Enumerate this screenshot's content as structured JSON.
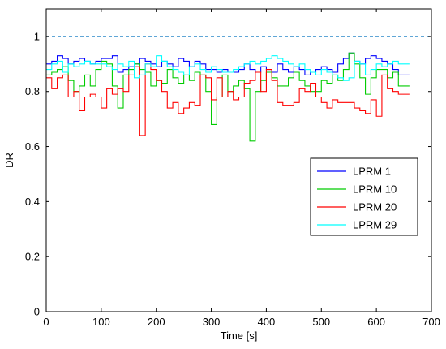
{
  "chart_data": {
    "type": "line",
    "title": "",
    "xlabel": "Time   [s]",
    "ylabel": "DR",
    "xlim": [
      0,
      700
    ],
    "ylim": [
      0,
      1.1
    ],
    "xticks": [
      0,
      100,
      200,
      300,
      400,
      500,
      600,
      700
    ],
    "yticks": [
      0,
      0.2,
      0.4,
      0.6,
      0.8,
      1
    ],
    "xtick_labels": [
      "0",
      "100",
      "200",
      "300",
      "400",
      "500",
      "600",
      "700"
    ],
    "ytick_labels": [
      "0",
      "0.2",
      "0.4",
      "0.6",
      "0.8",
      "1"
    ],
    "grid": false,
    "legend": "center-right",
    "step": true,
    "series": [
      {
        "name": "LPRM 1",
        "color": "#0000ff",
        "x": [
          0,
          10,
          20,
          30,
          40,
          50,
          60,
          70,
          80,
          90,
          100,
          110,
          120,
          130,
          140,
          150,
          160,
          170,
          180,
          190,
          200,
          210,
          220,
          230,
          240,
          250,
          260,
          270,
          280,
          290,
          300,
          310,
          320,
          330,
          340,
          350,
          360,
          370,
          380,
          390,
          400,
          410,
          420,
          430,
          440,
          450,
          460,
          470,
          480,
          490,
          500,
          510,
          520,
          530,
          540,
          550,
          560,
          570,
          580,
          590,
          600,
          610,
          620,
          630,
          640,
          650
        ],
        "y": [
          0.9,
          0.91,
          0.93,
          0.92,
          0.9,
          0.91,
          0.92,
          0.91,
          0.9,
          0.91,
          0.92,
          0.92,
          0.93,
          0.87,
          0.88,
          0.89,
          0.9,
          0.92,
          0.91,
          0.9,
          0.89,
          0.91,
          0.9,
          0.89,
          0.92,
          0.91,
          0.89,
          0.91,
          0.9,
          0.88,
          0.88,
          0.87,
          0.88,
          0.87,
          0.87,
          0.88,
          0.9,
          0.88,
          0.87,
          0.89,
          0.88,
          0.87,
          0.9,
          0.88,
          0.87,
          0.89,
          0.88,
          0.86,
          0.87,
          0.88,
          0.89,
          0.88,
          0.87,
          0.9,
          0.92,
          0.94,
          0.91,
          0.9,
          0.92,
          0.93,
          0.92,
          0.91,
          0.9,
          0.88,
          0.86,
          0.86
        ]
      },
      {
        "name": "LPRM 10",
        "color": "#00cc00",
        "x": [
          0,
          10,
          20,
          30,
          40,
          50,
          60,
          70,
          80,
          90,
          100,
          110,
          120,
          130,
          140,
          150,
          160,
          170,
          180,
          190,
          200,
          210,
          220,
          230,
          240,
          250,
          260,
          270,
          280,
          290,
          300,
          310,
          320,
          330,
          340,
          350,
          360,
          370,
          380,
          390,
          400,
          410,
          420,
          430,
          440,
          450,
          460,
          470,
          480,
          490,
          500,
          510,
          520,
          530,
          540,
          550,
          560,
          570,
          580,
          590,
          600,
          610,
          620,
          630,
          640,
          650
        ],
        "y": [
          0.86,
          0.87,
          0.88,
          0.89,
          0.84,
          0.8,
          0.82,
          0.86,
          0.82,
          0.88,
          0.91,
          0.9,
          0.82,
          0.74,
          0.86,
          0.88,
          0.9,
          0.88,
          0.87,
          0.82,
          0.84,
          0.83,
          0.88,
          0.85,
          0.83,
          0.86,
          0.84,
          0.87,
          0.86,
          0.8,
          0.68,
          0.78,
          0.86,
          0.8,
          0.82,
          0.84,
          0.81,
          0.62,
          0.8,
          0.84,
          0.87,
          0.85,
          0.82,
          0.82,
          0.85,
          0.87,
          0.84,
          0.82,
          0.8,
          0.8,
          0.84,
          0.83,
          0.86,
          0.84,
          0.88,
          0.94,
          0.9,
          0.85,
          0.79,
          0.85,
          0.88,
          0.88,
          0.85,
          0.87,
          0.82,
          0.82
        ]
      },
      {
        "name": "LPRM 20",
        "color": "#ff0000",
        "x": [
          0,
          10,
          20,
          30,
          40,
          50,
          60,
          70,
          80,
          90,
          100,
          110,
          120,
          130,
          140,
          150,
          160,
          170,
          180,
          190,
          200,
          210,
          220,
          230,
          240,
          250,
          260,
          270,
          280,
          290,
          300,
          310,
          320,
          330,
          340,
          350,
          360,
          370,
          380,
          390,
          400,
          410,
          420,
          430,
          440,
          450,
          460,
          470,
          480,
          490,
          500,
          510,
          520,
          530,
          540,
          550,
          560,
          570,
          580,
          590,
          600,
          610,
          620,
          630,
          640,
          650
        ],
        "y": [
          0.85,
          0.81,
          0.85,
          0.86,
          0.78,
          0.8,
          0.73,
          0.78,
          0.79,
          0.78,
          0.74,
          0.81,
          0.79,
          0.81,
          0.8,
          0.86,
          0.89,
          0.64,
          0.9,
          0.88,
          0.84,
          0.8,
          0.74,
          0.76,
          0.72,
          0.74,
          0.76,
          0.75,
          0.86,
          0.85,
          0.77,
          0.85,
          0.78,
          0.8,
          0.77,
          0.78,
          0.83,
          0.84,
          0.87,
          0.8,
          0.88,
          0.84,
          0.76,
          0.75,
          0.75,
          0.76,
          0.81,
          0.8,
          0.83,
          0.78,
          0.76,
          0.74,
          0.77,
          0.76,
          0.76,
          0.76,
          0.74,
          0.73,
          0.72,
          0.77,
          0.71,
          0.86,
          0.81,
          0.8,
          0.79,
          0.79
        ]
      },
      {
        "name": "LPRM 29",
        "color": "#00ffff",
        "x": [
          0,
          10,
          20,
          30,
          40,
          50,
          60,
          70,
          80,
          90,
          100,
          110,
          120,
          130,
          140,
          150,
          160,
          170,
          180,
          190,
          200,
          210,
          220,
          230,
          240,
          250,
          260,
          270,
          280,
          290,
          300,
          310,
          320,
          330,
          340,
          350,
          360,
          370,
          380,
          390,
          400,
          410,
          420,
          430,
          440,
          450,
          460,
          470,
          480,
          490,
          500,
          510,
          520,
          530,
          540,
          550,
          560,
          570,
          580,
          590,
          600,
          610,
          620,
          630,
          640,
          650
        ],
        "y": [
          0.88,
          0.9,
          0.91,
          0.87,
          0.9,
          0.89,
          0.9,
          0.91,
          0.9,
          0.9,
          0.9,
          0.89,
          0.88,
          0.9,
          0.89,
          0.91,
          0.85,
          0.86,
          0.9,
          0.89,
          0.93,
          0.91,
          0.89,
          0.88,
          0.87,
          0.86,
          0.89,
          0.9,
          0.88,
          0.87,
          0.89,
          0.88,
          0.87,
          0.87,
          0.88,
          0.89,
          0.9,
          0.91,
          0.9,
          0.91,
          0.92,
          0.93,
          0.92,
          0.91,
          0.9,
          0.89,
          0.9,
          0.88,
          0.87,
          0.86,
          0.88,
          0.87,
          0.86,
          0.85,
          0.84,
          0.85,
          0.91,
          0.9,
          0.86,
          0.88,
          0.9,
          0.89,
          0.9,
          0.91,
          0.9,
          0.9
        ]
      }
    ],
    "reference_lines": [
      {
        "y": 1.0,
        "color": "#0072bd",
        "style": "dashed"
      }
    ]
  }
}
